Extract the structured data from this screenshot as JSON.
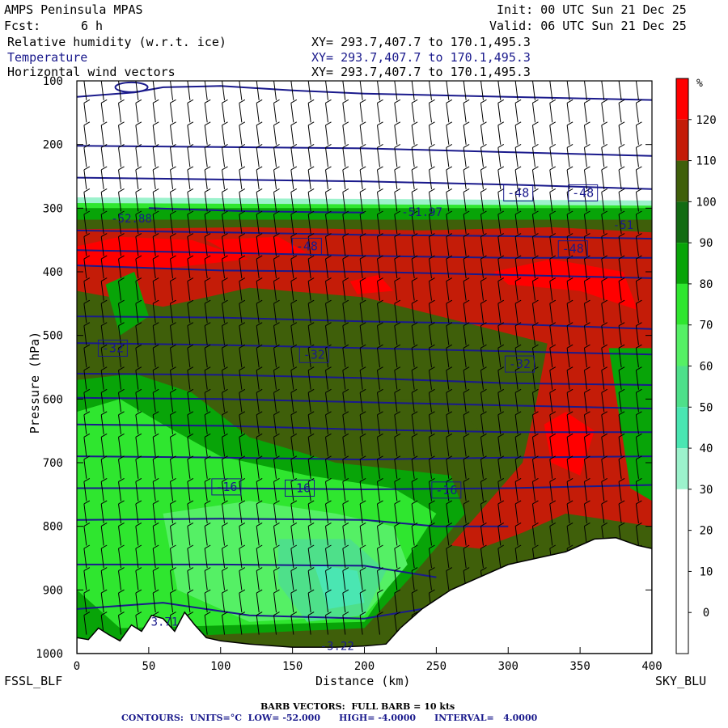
{
  "header": {
    "model": "AMPS Peninsula MPAS",
    "init": "Init: 00 UTC Sun 21 Dec 25",
    "fcst_label": "Fcst:",
    "fcst_value": "6 h",
    "valid": "Valid: 06 UTC Sun 21 Dec 25",
    "fields": [
      {
        "name": "Relative humidity (w.r.t. ice)",
        "xy": "XY= 293.7,407.7 to 170.1,495.3"
      },
      {
        "name": "Temperature",
        "xy": "XY= 293.7,407.7 to 170.1,495.3"
      },
      {
        "name": "Horizontal wind vectors",
        "xy": "XY= 293.7,407.7 to 170.1,495.3"
      }
    ]
  },
  "chart_data": {
    "type": "heatmap",
    "title": "AMPS Peninsula MPAS",
    "xlabel": "Distance (km)",
    "ylabel": "Pressure (hPa)",
    "xlim": [
      0,
      400
    ],
    "ylim": [
      1000,
      100
    ],
    "x_ticks": [
      "0",
      "50",
      "100",
      "150",
      "200",
      "250",
      "300",
      "350",
      "400"
    ],
    "y_ticks": [
      "100",
      "200",
      "300",
      "400",
      "500",
      "600",
      "700",
      "800",
      "900",
      "1000"
    ],
    "left_endpoint": "FSSL_BLF",
    "right_endpoint": "SKY_BLU",
    "colorbar": {
      "unit": "%",
      "levels": [
        "120",
        "110",
        "100",
        "90",
        "80",
        "70",
        "60",
        "50",
        "40",
        "30",
        "20",
        "10",
        "0"
      ],
      "colors": [
        "#ff0000",
        "#c41c08",
        "#3f5f0a",
        "#126b12",
        "#08a408",
        "#2fe62f",
        "#55f065",
        "#4ee08a",
        "#4ae6b2",
        "#9cf2cc",
        "#ffffff",
        "#ffffff",
        "#ffffff",
        "#ffffff"
      ]
    },
    "temperature_contours": {
      "units": "°C",
      "low": -52,
      "high": -4,
      "interval": 4,
      "labels": [
        {
          "text": "-48",
          "x": 160,
          "p": 360
        },
        {
          "text": "-48",
          "x": 307,
          "p": 276
        },
        {
          "text": "-48",
          "x": 352,
          "p": 276
        },
        {
          "text": "-48",
          "x": 345,
          "p": 364
        },
        {
          "text": "-32",
          "x": 25,
          "p": 520
        },
        {
          "text": "-32",
          "x": 165,
          "p": 530
        },
        {
          "text": "-32",
          "x": 308,
          "p": 545
        },
        {
          "text": "-16",
          "x": 104,
          "p": 738
        },
        {
          "text": "-16",
          "x": 155,
          "p": 740
        },
        {
          "text": "-16",
          "x": 257,
          "p": 743
        }
      ],
      "extrema": [
        {
          "text": "-52.88",
          "x": 38,
          "p": 316
        },
        {
          "text": "-51.97",
          "x": 240,
          "p": 306
        },
        {
          "text": "-51",
          "x": 380,
          "p": 326
        },
        {
          "text": "3.71",
          "x": 61,
          "p": 950
        },
        {
          "text": "-3.22",
          "x": 181,
          "p": 988
        }
      ]
    },
    "wind": {
      "label": "BARB VECTORS:  FULL BARB = 10 kts"
    }
  },
  "footer": {
    "barb": "BARB VECTORS:  FULL BARB = 10 kts",
    "contours": "CONTOURS:  UNITS=°C  LOW= -52.000      HIGH= -4.0000      INTERVAL=   4.0000"
  },
  "colors": {
    "contour": "#1a1a8c",
    "axis": "#000000"
  }
}
